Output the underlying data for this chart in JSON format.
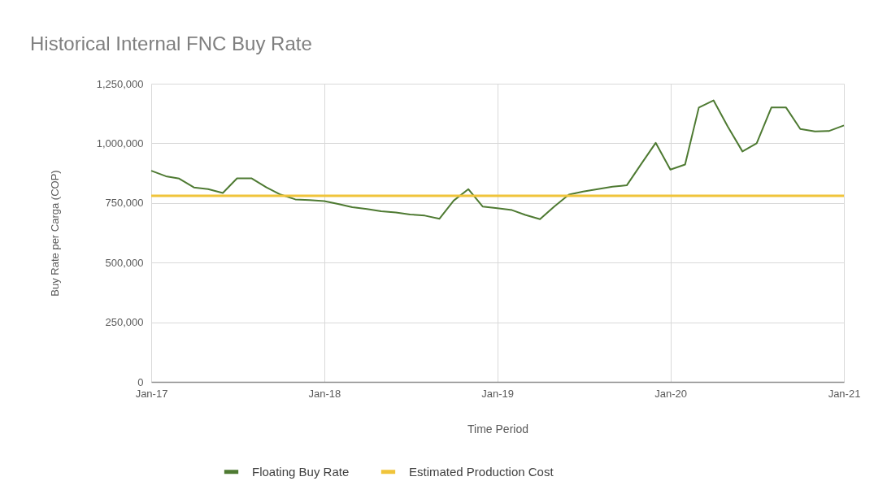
{
  "chart_data": {
    "type": "line",
    "title": "Historical Internal FNC Buy Rate",
    "xlabel": "Time Period",
    "ylabel": "Buy Rate per Carga (COP)",
    "x": [
      "2017-01",
      "2017-02",
      "2017-03",
      "2017-04",
      "2017-05",
      "2017-06",
      "2017-07",
      "2017-08",
      "2017-09",
      "2017-10",
      "2017-11",
      "2017-12",
      "2018-01",
      "2018-02",
      "2018-03",
      "2018-04",
      "2018-05",
      "2018-06",
      "2018-07",
      "2018-08",
      "2018-09",
      "2018-10",
      "2018-11",
      "2018-12",
      "2019-01",
      "2019-02",
      "2019-03",
      "2019-04",
      "2019-05",
      "2019-06",
      "2019-07",
      "2019-08",
      "2019-09",
      "2019-10",
      "2019-11",
      "2019-12",
      "2020-01",
      "2020-02",
      "2020-03",
      "2020-04",
      "2020-05",
      "2020-06",
      "2020-07",
      "2020-08",
      "2020-09",
      "2020-10",
      "2020-11",
      "2020-12",
      "2021-01"
    ],
    "series": [
      {
        "name": "Floating Buy Rate",
        "color": "#4e7a32",
        "values": [
          885000,
          862000,
          852000,
          815000,
          808000,
          792000,
          853000,
          853000,
          815000,
          785000,
          765000,
          762000,
          758000,
          745000,
          732000,
          725000,
          715000,
          710000,
          702000,
          697000,
          684000,
          760000,
          808000,
          735000,
          728000,
          720000,
          700000,
          682000,
          735000,
          785000,
          798000,
          808000,
          818000,
          824000,
          915000,
          1002000,
          890000,
          911000,
          1150000,
          1180000,
          1070000,
          966000,
          1000000,
          1150000,
          1150000,
          1060000,
          1050000,
          1052000,
          1075000
        ]
      },
      {
        "name": "Estimated Production Cost",
        "color": "#f0c43a",
        "x": [
          "2017-01",
          "2021-01"
        ],
        "values": [
          780000,
          780000
        ]
      }
    ],
    "xlim": [
      "2017-01",
      "2021-01"
    ],
    "xticks": [
      {
        "value": "2017-01",
        "label": "Jan-17"
      },
      {
        "value": "2018-01",
        "label": "Jan-18"
      },
      {
        "value": "2019-01",
        "label": "Jan-19"
      },
      {
        "value": "2020-01",
        "label": "Jan-20"
      },
      {
        "value": "2021-01",
        "label": "Jan-21"
      }
    ],
    "ylim": [
      0,
      1250000
    ],
    "yticks": [
      0,
      {
        "value": 250000,
        "label": "250,000"
      },
      {
        "value": 500000,
        "label": "500,000"
      },
      {
        "value": 750000,
        "label": "750,000"
      },
      {
        "value": 1000000,
        "label": "1,000,000"
      },
      {
        "value": 1250000,
        "label": "1,250,000"
      }
    ],
    "grid": true,
    "legend": "bottom"
  }
}
